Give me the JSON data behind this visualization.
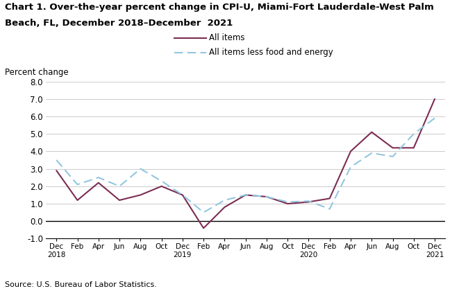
{
  "title_line1": "Chart 1. Over-the-year percent change in CPI-U, Miami-Fort Lauderdale-West Palm",
  "title_line2": "Beach, FL, December 2018–December  2021",
  "ylabel": "Percent change",
  "source": "Source: U.S. Bureau of Labor Statistics.",
  "ylim": [
    -1.0,
    8.0
  ],
  "yticks": [
    -1.0,
    0.0,
    1.0,
    2.0,
    3.0,
    4.0,
    5.0,
    6.0,
    7.0,
    8.0
  ],
  "all_items": [
    2.9,
    1.2,
    2.2,
    1.2,
    1.5,
    2.0,
    1.5,
    -0.4,
    0.8,
    1.5,
    1.4,
    1.0,
    1.1,
    1.3,
    4.0,
    5.1,
    4.2,
    4.2,
    7.0
  ],
  "all_items_less": [
    3.5,
    2.1,
    2.5,
    2.0,
    3.0,
    2.3,
    1.5,
    0.5,
    1.2,
    1.5,
    1.4,
    1.1,
    1.15,
    0.7,
    3.1,
    3.9,
    3.7,
    5.0,
    5.9
  ],
  "all_items_color": "#7B2D52",
  "all_items_less_color": "#93C6E0",
  "background_color": "#ffffff",
  "grid_color": "#cccccc",
  "n_points": 19
}
